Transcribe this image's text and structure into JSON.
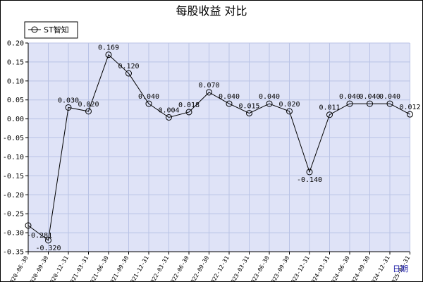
{
  "chart_data": {
    "type": "line",
    "title": "每股收益  对比",
    "xlabel": "日期",
    "ylabel": "",
    "ylim": [
      -0.35,
      0.2
    ],
    "yticks": [
      0.2,
      0.15,
      0.1,
      0.05,
      0.0,
      -0.05,
      -0.1,
      -0.15,
      -0.2,
      -0.25,
      -0.3,
      -0.35
    ],
    "ytick_labels": [
      "0.20",
      "0.15",
      "0.10",
      "0.05",
      "0.00",
      "-0.05",
      "-0.10",
      "-0.15",
      "-0.20",
      "-0.25",
      "-0.30",
      "-0.35"
    ],
    "grid": true,
    "legend_position": "top-left",
    "categories": [
      "2020-06-30",
      "2020-09-30",
      "2020-12-31",
      "2021-03-31",
      "2021-06-30",
      "2021-09-30",
      "2021-12-31",
      "2022-03-31",
      "2022-06-30",
      "2022-09-30",
      "2022-12-31",
      "2023-03-31",
      "2023-06-30",
      "2023-09-30",
      "2023-12-31",
      "2024-03-31",
      "2024-06-30",
      "2024-09-30",
      "2024-12-31",
      "2025-03-31"
    ],
    "series": [
      {
        "name": "ST智知",
        "values": [
          -0.281,
          -0.32,
          0.03,
          0.02,
          0.169,
          0.12,
          0.04,
          0.004,
          0.018,
          0.07,
          0.04,
          0.015,
          0.04,
          0.02,
          -0.14,
          0.011,
          0.04,
          0.04,
          0.04,
          0.012
        ],
        "labels": [
          "-0.281",
          "-0.320",
          "0.030",
          "0.020",
          "0.169",
          "0.120",
          "0.040",
          "0.004",
          "0.018",
          "0.070",
          "0.040",
          "0.015",
          "0.040",
          "0.020",
          "-0.140",
          "0.011",
          "0.040",
          "0.040",
          "0.040",
          "0.012"
        ]
      }
    ],
    "colors": {
      "plot_background": "#dfe3f7",
      "grid": "#b9c3e6",
      "line": "#000000",
      "axis_label": "#1a1aa6"
    }
  }
}
